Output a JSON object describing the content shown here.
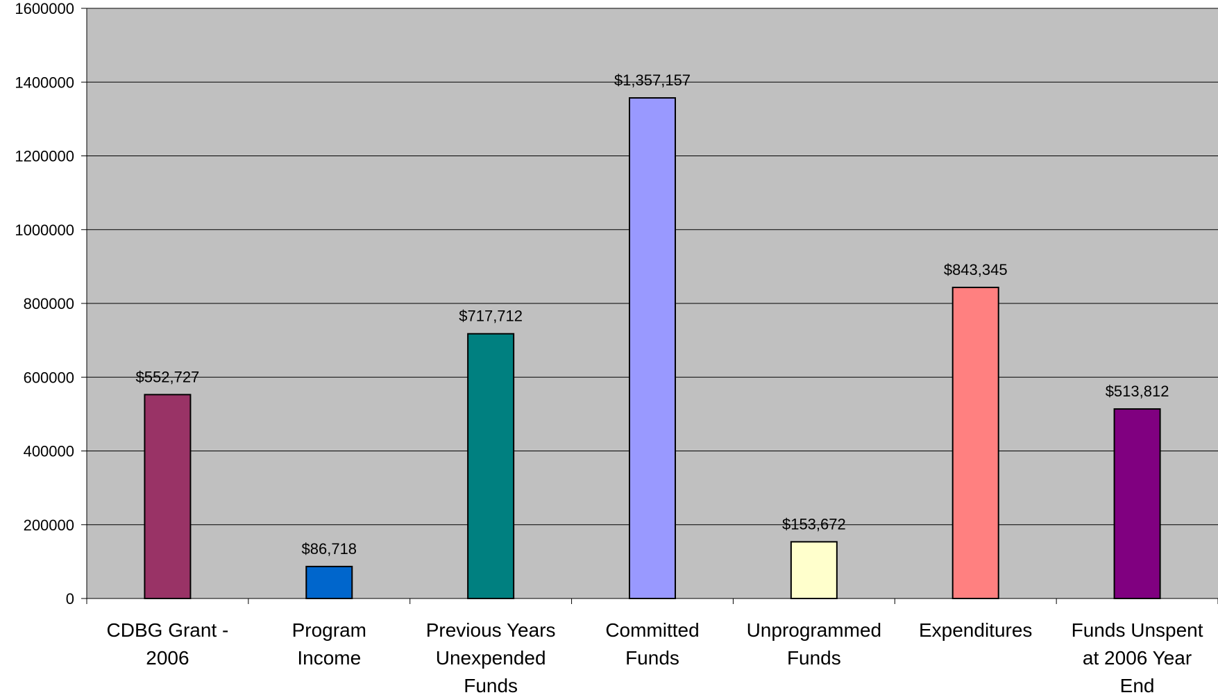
{
  "chart_data": {
    "type": "bar",
    "categories": [
      [
        "CDBG Grant -",
        "2006"
      ],
      [
        "Program",
        "Income"
      ],
      [
        "Previous Years",
        "Unexpended",
        "Funds"
      ],
      [
        "Committed",
        "Funds"
      ],
      [
        "Unprogrammed",
        "Funds"
      ],
      [
        "Expenditures"
      ],
      [
        "Funds Unspent",
        "at 2006 Year",
        "End"
      ]
    ],
    "values": [
      552727,
      86718,
      717712,
      1357157,
      153672,
      843345,
      513812
    ],
    "data_labels": [
      "$552,727",
      "$86,718",
      "$717,712",
      "$1,357,157",
      "$153,672",
      "$843,345",
      "$513,812"
    ],
    "bar_colors": [
      "#993366",
      "#0066CC",
      "#008080",
      "#9999FF",
      "#FFFFCC",
      "#FF8080",
      "#800080"
    ],
    "title": "",
    "xlabel": "",
    "ylabel": "",
    "ylim": [
      0,
      1600000
    ],
    "y_ticks": [
      0,
      200000,
      400000,
      600000,
      800000,
      1000000,
      1200000,
      1400000,
      1600000
    ],
    "y_tick_labels": [
      "0",
      "200000",
      "400000",
      "600000",
      "800000",
      "1000000",
      "1200000",
      "1400000",
      "1600000"
    ],
    "grid": true,
    "legend": "none",
    "plot_background": "#C0C0C0"
  }
}
